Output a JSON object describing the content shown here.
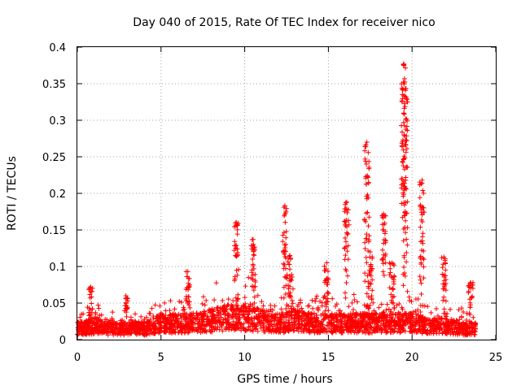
{
  "chart_data": {
    "type": "scatter",
    "title": "Day 040 of 2015, Rate Of TEC Index for receiver nico",
    "xlabel": "GPS time / hours",
    "ylabel": "ROTI / TECUs",
    "xlim": [
      0,
      25
    ],
    "ylim": [
      0,
      0.4
    ],
    "x_ticks": [
      "0",
      "5",
      "10",
      "15",
      "20",
      "25"
    ],
    "y_ticks": [
      "0",
      "0.05",
      "0.1",
      "0.15",
      "0.2",
      "0.25",
      "0.3",
      "0.35",
      "0.4"
    ],
    "grid": true,
    "marker": "+",
    "color": "#ff0000",
    "series": [
      {
        "values_description_baseline": [
          [
            0,
            0.02
          ],
          [
            1,
            0.025
          ],
          [
            2,
            0.02
          ],
          [
            3,
            0.02
          ],
          [
            4,
            0.02
          ],
          [
            5,
            0.03
          ],
          [
            6,
            0.03
          ],
          [
            7,
            0.03
          ],
          [
            8,
            0.035
          ],
          [
            9,
            0.04
          ],
          [
            10,
            0.04
          ],
          [
            11,
            0.035
          ],
          [
            12,
            0.03
          ],
          [
            13,
            0.035
          ],
          [
            14,
            0.03
          ],
          [
            15,
            0.03
          ],
          [
            16,
            0.03
          ],
          [
            17,
            0.03
          ],
          [
            18,
            0.03
          ],
          [
            19,
            0.03
          ],
          [
            20,
            0.03
          ],
          [
            21,
            0.025
          ],
          [
            22,
            0.025
          ],
          [
            23,
            0.02
          ],
          [
            23.8,
            0.02
          ]
        ],
        "spikes": [
          [
            0.8,
            0.072
          ],
          [
            2.9,
            0.06
          ],
          [
            6.6,
            0.093
          ],
          [
            9.5,
            0.16
          ],
          [
            10.5,
            0.137
          ],
          [
            12.4,
            0.183
          ],
          [
            12.7,
            0.115
          ],
          [
            14.9,
            0.105
          ],
          [
            16.1,
            0.188
          ],
          [
            17.3,
            0.27
          ],
          [
            17.5,
            0.12
          ],
          [
            18.3,
            0.172
          ],
          [
            18.8,
            0.105
          ],
          [
            19.5,
            0.377
          ],
          [
            19.6,
            0.343
          ],
          [
            20.6,
            0.218
          ],
          [
            21.9,
            0.113
          ],
          [
            23.5,
            0.078
          ]
        ]
      }
    ]
  }
}
